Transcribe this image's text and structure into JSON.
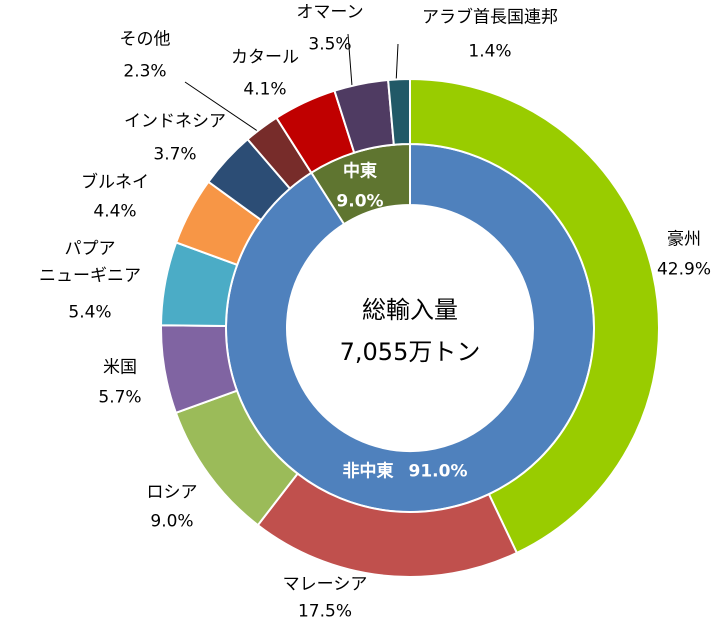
{
  "chart_data": {
    "type": "donut",
    "rings": [
      {
        "categories": [
          "非中東",
          "中東"
        ],
        "values": [
          91.0,
          9.0
        ],
        "value_labels": [
          "91.0%",
          "9.0%"
        ],
        "colors": [
          "#4f81bd",
          "#5f7530"
        ]
      },
      {
        "categories": [
          "豪州",
          "マレーシア",
          "ロシア",
          "米国",
          "パプア\nニューギニア",
          "ブルネイ",
          "インドネシア",
          "その他",
          "カタール",
          "オマーン",
          "アラブ首長国連邦"
        ],
        "values": [
          42.9,
          17.5,
          9.0,
          5.7,
          5.4,
          4.4,
          3.7,
          2.3,
          4.1,
          3.5,
          1.4
        ],
        "value_labels": [
          "42.9%",
          "17.5%",
          "9.0%",
          "5.7%",
          "5.4%",
          "4.4%",
          "3.7%",
          "2.3%",
          "4.1%",
          "3.5%",
          "1.4%"
        ],
        "colors": [
          "#99cc00",
          "#c0504d",
          "#9bbb59",
          "#8064a2",
          "#4bacc6",
          "#f79646",
          "#2c4d75",
          "#772c2a",
          "#c00000",
          "#4f3b62",
          "#215967"
        ]
      }
    ],
    "annotations": [
      "総輸入量",
      "7,055万トン"
    ]
  }
}
